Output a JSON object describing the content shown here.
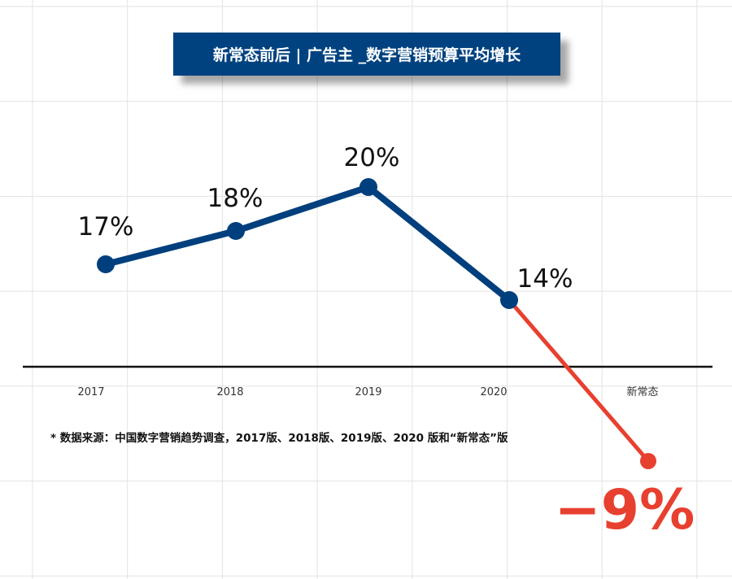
{
  "chart_data": {
    "type": "line",
    "title": "新常态前后 | 广告主 _数字营销预算平均增长",
    "categories": [
      "2017",
      "2018",
      "2019",
      "2020",
      "新常态"
    ],
    "values": [
      17,
      18,
      20,
      14,
      -9
    ],
    "data_labels": [
      "17%",
      "18%",
      "20%",
      "14%",
      "-9%"
    ],
    "xlabel": "",
    "ylabel": "",
    "grid": true,
    "note": "* 数据来源：中国数字营销趋势调查，2017版、2018版、2019版、2020 版和“新常态”版",
    "colors": {
      "main": "#003f7d",
      "negative": "#e8402f",
      "axis": "#111111"
    }
  }
}
